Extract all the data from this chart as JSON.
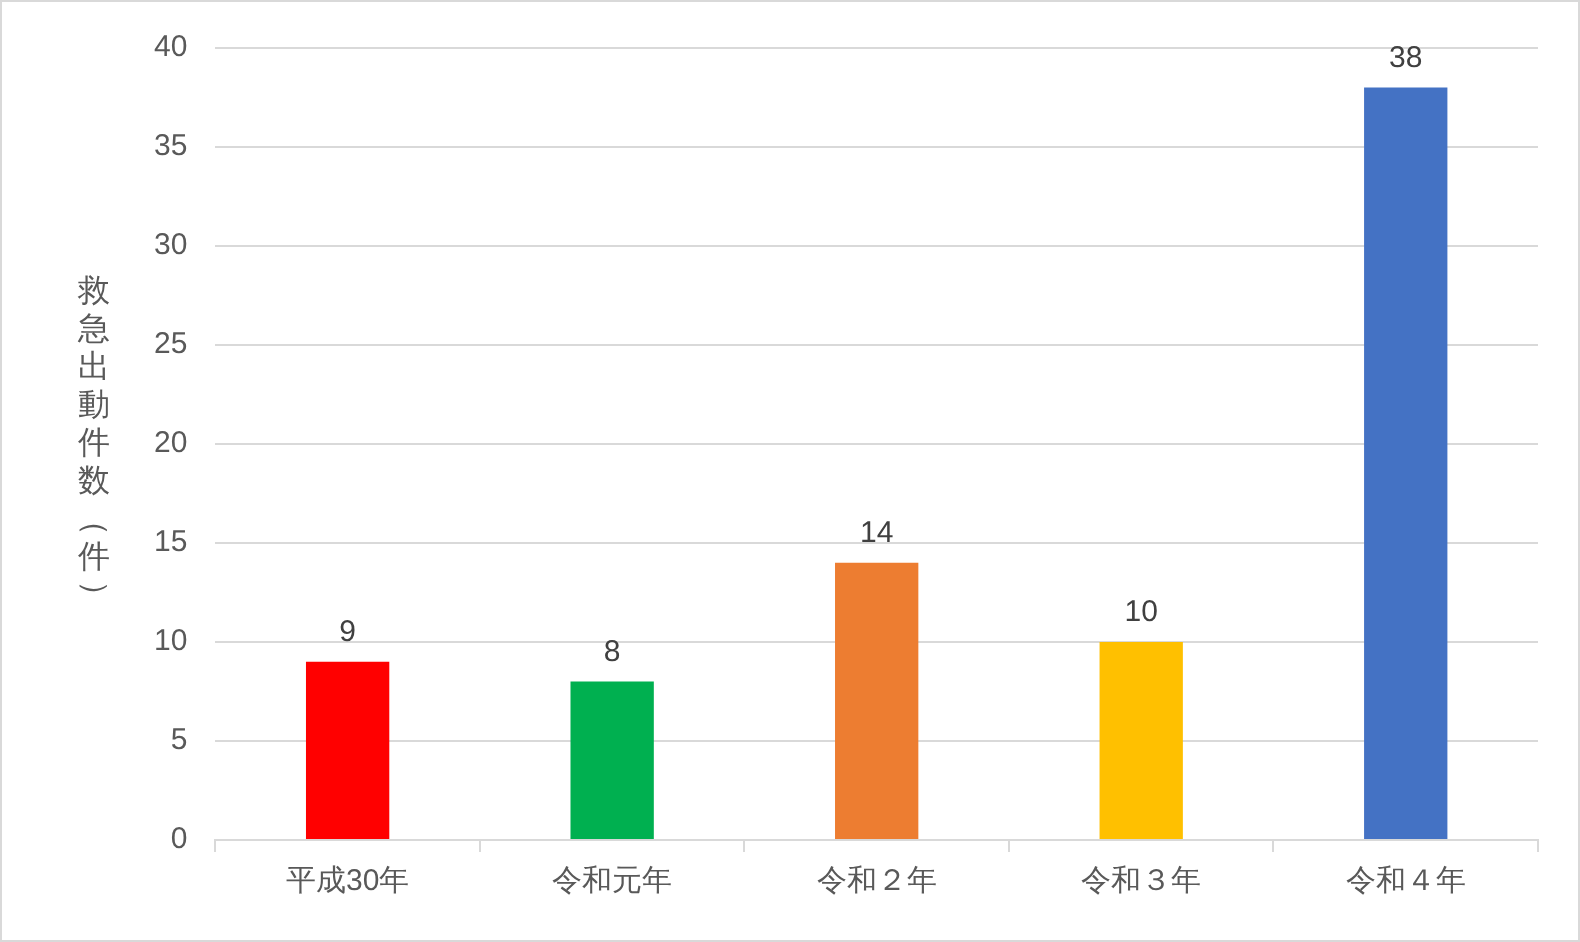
{
  "chart_data": {
    "type": "bar",
    "ylabel": "救急出動件数（件）",
    "categories": [
      "平成30年",
      "令和元年",
      "令和２年",
      "令和３年",
      "令和４年"
    ],
    "values": [
      9,
      8,
      14,
      10,
      38
    ],
    "colors": [
      "#ff0000",
      "#00b050",
      "#ed7d31",
      "#ffc000",
      "#4472c4"
    ],
    "ylim": [
      0,
      40
    ],
    "yticks": [
      0,
      5,
      10,
      15,
      20,
      25,
      30,
      35,
      40
    ],
    "grid": "y",
    "data_labels": true
  }
}
